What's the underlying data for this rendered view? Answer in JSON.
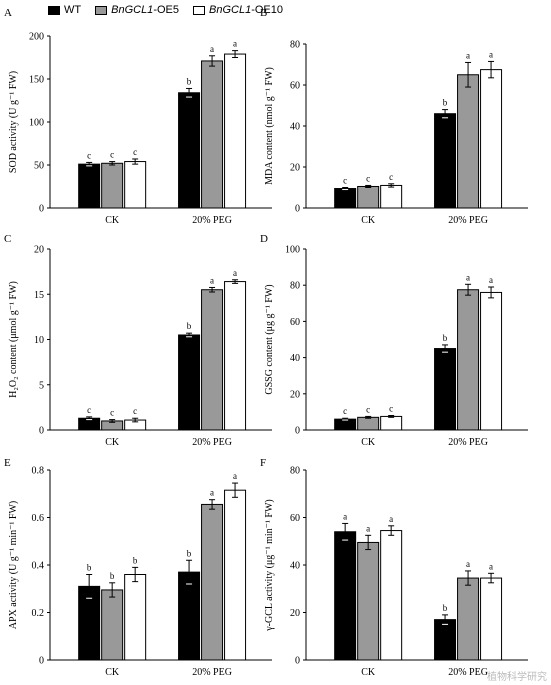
{
  "legend": [
    {
      "gene": "",
      "suffix": "WT",
      "color": "#000000"
    },
    {
      "gene": "BnGCL1",
      "suffix": "-OE5",
      "color": "#999999"
    },
    {
      "gene": "BnGCL1",
      "suffix": "-OE10",
      "color": "#ffffff"
    }
  ],
  "watermark": "植物科学研究",
  "chart_data": [
    {
      "panel": "A",
      "type": "bar",
      "ylabel": "SOD activity (U g⁻¹ FW)",
      "ylim": [
        0,
        200
      ],
      "yticks": [
        0,
        50,
        100,
        150,
        200
      ],
      "categories": [
        "CK",
        "20% PEG"
      ],
      "series": [
        {
          "name": "WT",
          "values": [
            51,
            134
          ],
          "errors": [
            2,
            5
          ],
          "letters": [
            "c",
            "b"
          ]
        },
        {
          "name": "BnGCL1-OE5",
          "values": [
            52,
            171
          ],
          "errors": [
            2,
            6
          ],
          "letters": [
            "c",
            "a"
          ]
        },
        {
          "name": "BnGCL1-OE10",
          "values": [
            54,
            179
          ],
          "errors": [
            3,
            4
          ],
          "letters": [
            "c",
            "a"
          ]
        }
      ]
    },
    {
      "panel": "B",
      "type": "bar",
      "ylabel": "MDA content (nmol g⁻¹ FW)",
      "ylim": [
        0,
        80
      ],
      "yticks": [
        0,
        20,
        40,
        60,
        80
      ],
      "categories": [
        "CK",
        "20% PEG"
      ],
      "series": [
        {
          "name": "WT",
          "values": [
            9.5,
            46
          ],
          "errors": [
            0.5,
            2
          ],
          "letters": [
            "c",
            "b"
          ]
        },
        {
          "name": "BnGCL1-OE5",
          "values": [
            10.5,
            65
          ],
          "errors": [
            0.5,
            6
          ],
          "letters": [
            "c",
            "a"
          ]
        },
        {
          "name": "BnGCL1-OE10",
          "values": [
            11,
            67.5
          ],
          "errors": [
            0.8,
            4
          ],
          "letters": [
            "c",
            "a"
          ]
        }
      ]
    },
    {
      "panel": "C",
      "type": "bar",
      "ylabel": "H₂O₂ content (μmol g⁻¹ FW)",
      "ylim": [
        0,
        20
      ],
      "yticks": [
        0,
        5,
        10,
        15,
        20
      ],
      "categories": [
        "CK",
        "20% PEG"
      ],
      "series": [
        {
          "name": "WT",
          "values": [
            1.3,
            10.5
          ],
          "errors": [
            0.15,
            0.2
          ],
          "letters": [
            "c",
            "b"
          ]
        },
        {
          "name": "BnGCL1-OE5",
          "values": [
            1.0,
            15.5
          ],
          "errors": [
            0.15,
            0.25
          ],
          "letters": [
            "c",
            "a"
          ]
        },
        {
          "name": "BnGCL1-OE10",
          "values": [
            1.1,
            16.4
          ],
          "errors": [
            0.2,
            0.2
          ],
          "letters": [
            "c",
            "a"
          ]
        }
      ]
    },
    {
      "panel": "D",
      "type": "bar",
      "ylabel": "GSSG content (μg g⁻¹ FW)",
      "ylim": [
        0,
        100
      ],
      "yticks": [
        0,
        20,
        40,
        60,
        80,
        100
      ],
      "categories": [
        "CK",
        "20% PEG"
      ],
      "series": [
        {
          "name": "WT",
          "values": [
            6,
            45
          ],
          "errors": [
            0.5,
            2
          ],
          "letters": [
            "c",
            "b"
          ]
        },
        {
          "name": "BnGCL1-OE5",
          "values": [
            7,
            77.5
          ],
          "errors": [
            0.5,
            3
          ],
          "letters": [
            "c",
            "a"
          ]
        },
        {
          "name": "BnGCL1-OE10",
          "values": [
            7.5,
            76
          ],
          "errors": [
            0.5,
            3
          ],
          "letters": [
            "c",
            "a"
          ]
        }
      ]
    },
    {
      "panel": "E",
      "type": "bar",
      "ylabel": "APX activity (U g⁻¹ min⁻¹ FW)",
      "ylim": [
        0,
        0.8
      ],
      "yticks": [
        0,
        0.2,
        0.4,
        0.6,
        0.8
      ],
      "categories": [
        "CK",
        "20% PEG"
      ],
      "series": [
        {
          "name": "WT",
          "values": [
            0.31,
            0.37
          ],
          "errors": [
            0.05,
            0.05
          ],
          "letters": [
            "b",
            "b"
          ]
        },
        {
          "name": "BnGCL1-OE5",
          "values": [
            0.295,
            0.655
          ],
          "errors": [
            0.03,
            0.02
          ],
          "letters": [
            "b",
            "a"
          ]
        },
        {
          "name": "BnGCL1-OE10",
          "values": [
            0.36,
            0.715
          ],
          "errors": [
            0.03,
            0.03
          ],
          "letters": [
            "b",
            "a"
          ]
        }
      ]
    },
    {
      "panel": "F",
      "type": "bar",
      "ylabel": "γ-GCL activity (μg⁻¹ min⁻¹ FW)",
      "ylim": [
        0,
        80
      ],
      "yticks": [
        0,
        20,
        40,
        60,
        80
      ],
      "categories": [
        "CK",
        "20% PEG"
      ],
      "series": [
        {
          "name": "WT",
          "values": [
            54,
            17
          ],
          "errors": [
            3.5,
            2
          ],
          "letters": [
            "a",
            "b"
          ]
        },
        {
          "name": "BnGCL1-OE5",
          "values": [
            49.5,
            34.5
          ],
          "errors": [
            3,
            3
          ],
          "letters": [
            "a",
            "a"
          ]
        },
        {
          "name": "BnGCL1-OE10",
          "values": [
            54.5,
            34.5
          ],
          "errors": [
            2,
            2
          ],
          "letters": [
            "a",
            "a"
          ]
        }
      ]
    }
  ]
}
